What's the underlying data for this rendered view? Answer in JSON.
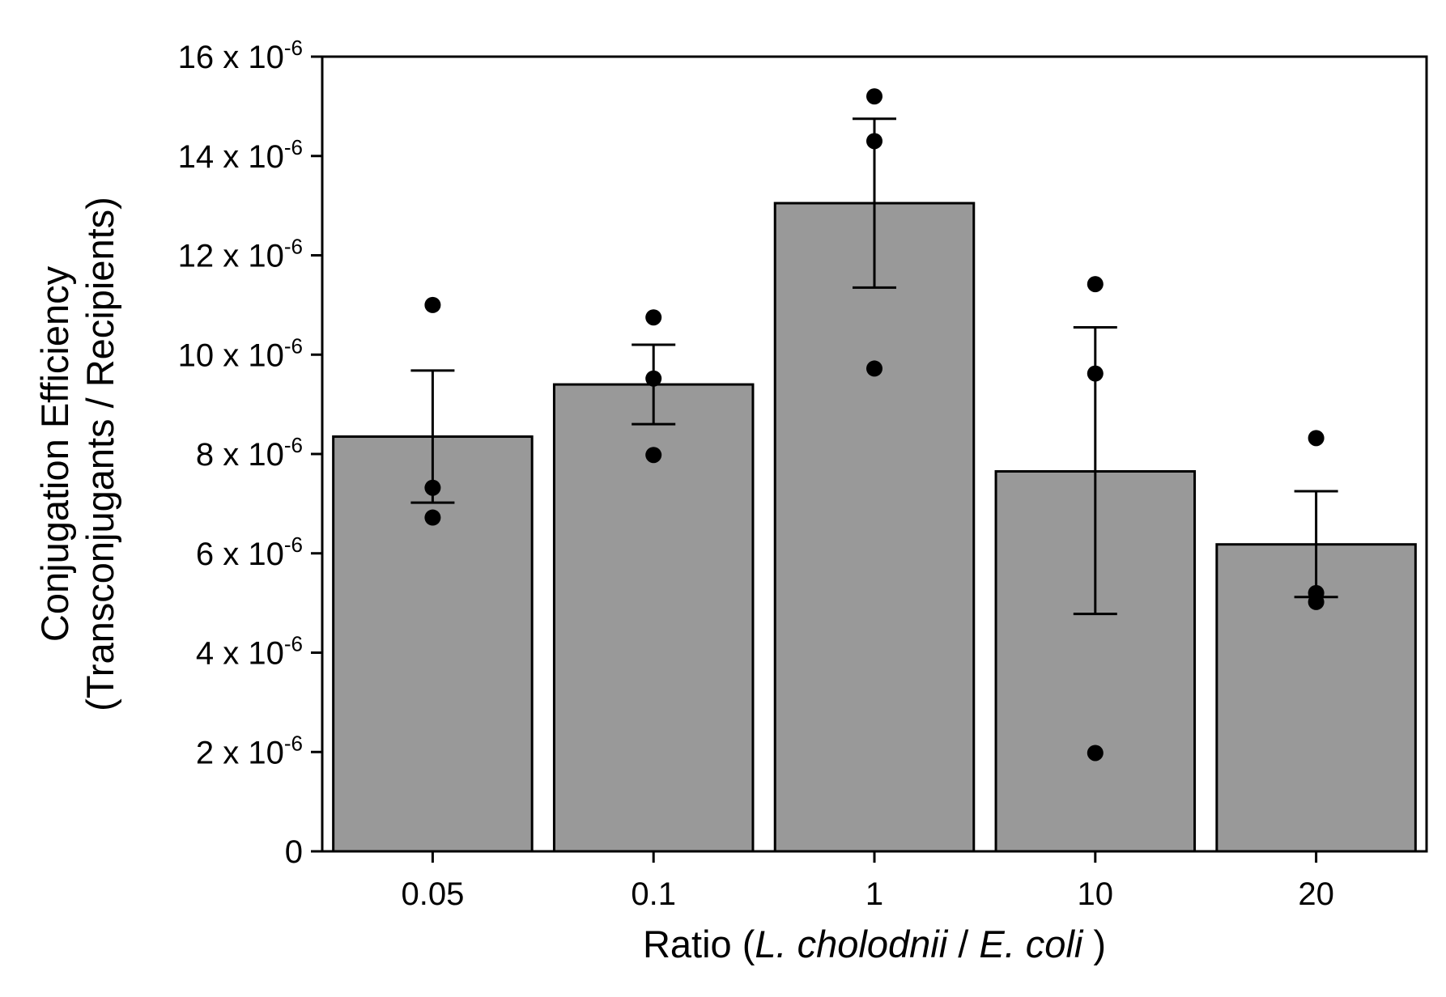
{
  "chart_data": {
    "type": "bar",
    "categories": [
      "0.05",
      "0.1",
      "1",
      "10",
      "20"
    ],
    "values": [
      8.35,
      9.4,
      13.05,
      7.65,
      6.18
    ],
    "error_upper": [
      9.68,
      10.2,
      14.75,
      10.55,
      7.25
    ],
    "error_lower": [
      7.02,
      8.6,
      11.35,
      4.78,
      5.12
    ],
    "points": [
      [
        11.0,
        7.32,
        6.72
      ],
      [
        10.75,
        9.52,
        7.98
      ],
      [
        15.2,
        14.3,
        9.72
      ],
      [
        11.42,
        9.62,
        1.98
      ],
      [
        8.32,
        5.2,
        5.02
      ]
    ],
    "ylim": [
      0,
      16
    ],
    "yticks": [
      0,
      2,
      4,
      6,
      8,
      10,
      12,
      14,
      16
    ],
    "ytick_labels": [
      "0",
      "2 x 10",
      "4 x 10",
      "6 x 10",
      "8 x 10",
      "10 x 10",
      "12 x 10",
      "14 x 10",
      "16 x 10"
    ],
    "ytick_exponent": "-6",
    "ylabel_line1": "Conjugation Efficiency",
    "ylabel_line2": "(Transconjugants / Recipients)",
    "xlabel_prefix": "Ratio (",
    "xlabel_italic_1": "L. cholodnii",
    "xlabel_sep": " / ",
    "xlabel_italic_2": "E. coli",
    "xlabel_suffix": " )",
    "colors": {
      "bar": "#999999",
      "stroke": "#000000"
    },
    "grid": false,
    "legend": "none"
  }
}
